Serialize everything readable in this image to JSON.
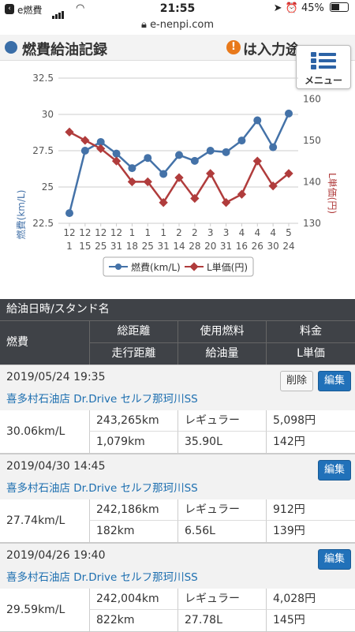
{
  "status": {
    "app_label": "e燃費",
    "time": "21:55",
    "battery": "45%"
  },
  "browser": {
    "url": "e-nenpi.com"
  },
  "header": {
    "title": "燃費給油記録",
    "notice": "は入力途"
  },
  "menu": {
    "label": "メニュー"
  },
  "chart_data": {
    "type": "line",
    "categories": [
      "12/1",
      "12/15",
      "12/25",
      "12/31",
      "1/18",
      "1/25",
      "1/31",
      "2/14",
      "2/28",
      "3/20",
      "3/31",
      "4/16",
      "4/26",
      "4/30",
      "5/24"
    ],
    "x_labels_top": [
      "12",
      "12",
      "12",
      "12",
      "1",
      "1",
      "1",
      "2",
      "2",
      "3",
      "3",
      "4",
      "4",
      "4",
      "5"
    ],
    "x_labels_bottom": [
      "1",
      "15",
      "25",
      "31",
      "18",
      "25",
      "31",
      "14",
      "28",
      "20",
      "31",
      "16",
      "26",
      "30",
      "24"
    ],
    "series": [
      {
        "name": "燃費(km/L)",
        "axis": "left",
        "color": "#4472a8",
        "values": [
          23.2,
          27.5,
          28.1,
          27.3,
          26.3,
          27.0,
          25.9,
          27.2,
          26.8,
          27.5,
          27.4,
          28.2,
          29.59,
          27.74,
          30.06
        ]
      },
      {
        "name": "L単価(円)",
        "axis": "right",
        "color": "#b03c3c",
        "values": [
          152,
          150,
          148,
          145,
          140,
          140,
          135,
          141,
          136,
          142,
          135,
          137,
          145,
          139,
          142
        ]
      }
    ],
    "ylabel_left": "燃費(km/L)",
    "ylabel_right": "L単価(円)",
    "ylim_left": [
      22.5,
      32.5
    ],
    "yticks_left": [
      "32.5",
      "30",
      "27.5",
      "25",
      "22.5"
    ],
    "ylim_right": [
      130,
      165
    ],
    "yticks_right": [
      "160",
      "150",
      "140",
      "130"
    ],
    "grid": true,
    "legend_position": "bottom"
  },
  "table": {
    "header_row1": "給油日時/スタンド名",
    "col_fuel": "燃費",
    "cols_top": [
      "総距離",
      "使用燃料",
      "料金"
    ],
    "cols_bottom": [
      "走行距離",
      "給油量",
      "L単価"
    ]
  },
  "records": [
    {
      "datetime": "2019/05/24 19:35",
      "station": "喜多村石油店 Dr.Drive セルフ那珂川SS",
      "delete_label": "削除",
      "edit_label": "編集",
      "fuel_efficiency": "30.06km/L",
      "total_distance": "243,265km",
      "fuel_type": "レギュラー",
      "price": "5,098円",
      "distance": "1,079km",
      "amount": "35.90L",
      "unit_price": "142円"
    },
    {
      "datetime": "2019/04/30 14:45",
      "station": "喜多村石油店 Dr.Drive セルフ那珂川SS",
      "edit_label": "編集",
      "fuel_efficiency": "27.74km/L",
      "total_distance": "242,186km",
      "fuel_type": "レギュラー",
      "price": "912円",
      "distance": "182km",
      "amount": "6.56L",
      "unit_price": "139円"
    },
    {
      "datetime": "2019/04/26 19:40",
      "station": "喜多村石油店 Dr.Drive セルフ那珂川SS",
      "edit_label": "編集",
      "fuel_efficiency": "29.59km/L",
      "total_distance": "242,004km",
      "fuel_type": "レギュラー",
      "price": "4,028円",
      "distance": "822km",
      "amount": "27.78L",
      "unit_price": "145円"
    }
  ]
}
